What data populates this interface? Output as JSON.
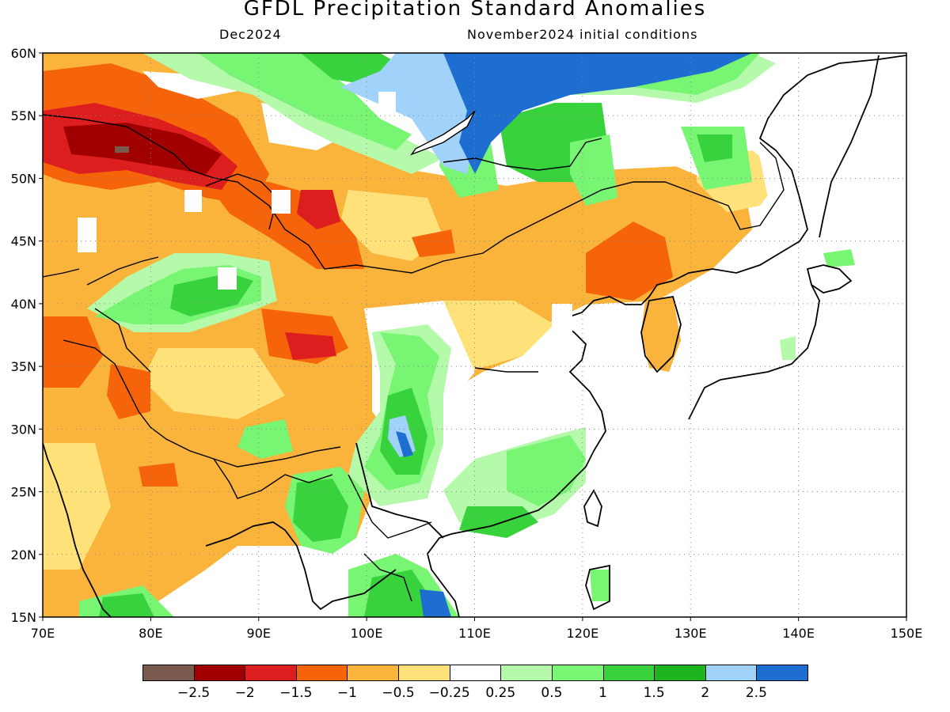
{
  "title": "GFDL Precipitation Standard Anomalies",
  "subtitle_left": "Dec2024",
  "subtitle_right": "November2024 initial conditions",
  "map": {
    "region": {
      "lon_range": [
        70,
        150
      ],
      "lat_range": [
        15,
        60
      ]
    },
    "lon_ticks": [
      "70E",
      "80E",
      "90E",
      "100E",
      "110E",
      "120E",
      "130E",
      "140E",
      "150E"
    ],
    "lat_ticks": [
      "15N",
      "20N",
      "25N",
      "30N",
      "35N",
      "40N",
      "45N",
      "50N",
      "55N",
      "60N"
    ],
    "gridlines": "dotted"
  },
  "legend": {
    "colors": [
      "#7a5a4e",
      "#a00000",
      "#dc1e1e",
      "#f5640a",
      "#fab43c",
      "#ffe17a",
      "#ffffff",
      "#b4faaa",
      "#78f573",
      "#37d23c",
      "#1eb41e",
      "#a0d2fa",
      "#1e6ed2"
    ],
    "labels": [
      "-2.5",
      "-2",
      "-1.5",
      "-1",
      "-0.5",
      "-0.25",
      "0.25",
      "0.5",
      "1",
      "1.5",
      "2",
      "2.5"
    ]
  }
}
